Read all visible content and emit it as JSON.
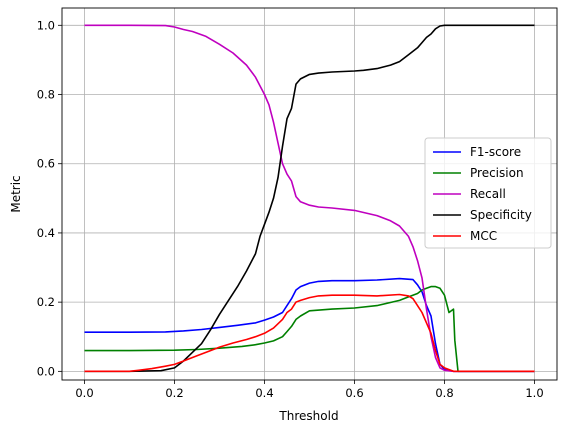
{
  "chart_data": {
    "type": "line",
    "title": "",
    "xlabel": "Threshold",
    "ylabel": "Metric",
    "xlim": [
      -0.05,
      1.05
    ],
    "ylim": [
      -0.025,
      1.05
    ],
    "grid": true,
    "legend": "center-right",
    "x_ticks": [
      "0.0",
      "0.2",
      "0.4",
      "0.6",
      "0.8",
      "1.0"
    ],
    "y_ticks": [
      "0.0",
      "0.2",
      "0.4",
      "0.6",
      "0.8",
      "1.0"
    ],
    "series": [
      {
        "name": "F1-score",
        "color": "#0000ff",
        "x": [
          0.0,
          0.1,
          0.18,
          0.22,
          0.26,
          0.3,
          0.34,
          0.38,
          0.4,
          0.42,
          0.44,
          0.45,
          0.46,
          0.47,
          0.48,
          0.5,
          0.52,
          0.55,
          0.6,
          0.65,
          0.7,
          0.73,
          0.74,
          0.75,
          0.76,
          0.77,
          0.78,
          0.79,
          0.8,
          0.82,
          0.85,
          0.9,
          1.0
        ],
        "y": [
          0.113,
          0.113,
          0.114,
          0.117,
          0.121,
          0.127,
          0.133,
          0.14,
          0.148,
          0.157,
          0.17,
          0.19,
          0.21,
          0.235,
          0.245,
          0.255,
          0.26,
          0.262,
          0.262,
          0.264,
          0.268,
          0.265,
          0.25,
          0.23,
          0.19,
          0.16,
          0.08,
          0.02,
          0.005,
          0.0,
          0.0,
          0.0,
          0.0
        ]
      },
      {
        "name": "Precision",
        "color": "#008000",
        "x": [
          0.0,
          0.1,
          0.2,
          0.25,
          0.3,
          0.35,
          0.38,
          0.4,
          0.42,
          0.44,
          0.45,
          0.46,
          0.47,
          0.48,
          0.5,
          0.55,
          0.6,
          0.65,
          0.7,
          0.72,
          0.74,
          0.75,
          0.76,
          0.77,
          0.78,
          0.79,
          0.8,
          0.81,
          0.82,
          0.823,
          0.83,
          0.9,
          1.0
        ],
        "y": [
          0.06,
          0.06,
          0.061,
          0.063,
          0.067,
          0.072,
          0.077,
          0.082,
          0.088,
          0.1,
          0.115,
          0.13,
          0.15,
          0.16,
          0.175,
          0.18,
          0.183,
          0.19,
          0.205,
          0.215,
          0.225,
          0.235,
          0.24,
          0.245,
          0.245,
          0.24,
          0.22,
          0.17,
          0.18,
          0.09,
          0.0,
          0.0,
          0.0
        ]
      },
      {
        "name": "Recall",
        "color": "#bf00bf",
        "x": [
          0.0,
          0.1,
          0.18,
          0.2,
          0.22,
          0.24,
          0.27,
          0.3,
          0.33,
          0.36,
          0.38,
          0.4,
          0.41,
          0.42,
          0.43,
          0.44,
          0.45,
          0.46,
          0.47,
          0.48,
          0.5,
          0.52,
          0.55,
          0.6,
          0.65,
          0.68,
          0.7,
          0.72,
          0.73,
          0.74,
          0.75,
          0.76,
          0.77,
          0.78,
          0.79,
          0.8,
          0.82,
          0.85,
          0.9,
          1.0
        ],
        "y": [
          1.0,
          1.0,
          0.999,
          0.995,
          0.988,
          0.982,
          0.968,
          0.945,
          0.92,
          0.885,
          0.85,
          0.8,
          0.77,
          0.72,
          0.66,
          0.6,
          0.57,
          0.55,
          0.505,
          0.49,
          0.48,
          0.475,
          0.472,
          0.465,
          0.45,
          0.435,
          0.42,
          0.39,
          0.36,
          0.32,
          0.27,
          0.18,
          0.1,
          0.04,
          0.01,
          0.003,
          0.0,
          0.0,
          0.0,
          0.0
        ]
      },
      {
        "name": "Specificity",
        "color": "#000000",
        "x": [
          0.0,
          0.1,
          0.17,
          0.2,
          0.22,
          0.24,
          0.26,
          0.28,
          0.3,
          0.32,
          0.34,
          0.36,
          0.38,
          0.39,
          0.4,
          0.41,
          0.42,
          0.43,
          0.44,
          0.45,
          0.46,
          0.47,
          0.48,
          0.5,
          0.52,
          0.55,
          0.6,
          0.62,
          0.65,
          0.68,
          0.7,
          0.72,
          0.74,
          0.75,
          0.76,
          0.77,
          0.78,
          0.79,
          0.8,
          0.85,
          0.9,
          1.0
        ],
        "y": [
          0.0,
          0.0,
          0.002,
          0.01,
          0.03,
          0.055,
          0.08,
          0.12,
          0.165,
          0.205,
          0.245,
          0.29,
          0.34,
          0.39,
          0.425,
          0.46,
          0.5,
          0.56,
          0.65,
          0.73,
          0.76,
          0.83,
          0.845,
          0.858,
          0.862,
          0.865,
          0.868,
          0.87,
          0.875,
          0.885,
          0.895,
          0.915,
          0.935,
          0.95,
          0.965,
          0.975,
          0.99,
          0.998,
          1.0,
          1.0,
          1.0,
          1.0
        ]
      },
      {
        "name": "MCC",
        "color": "#ff0000",
        "x": [
          0.0,
          0.1,
          0.12,
          0.15,
          0.18,
          0.2,
          0.22,
          0.25,
          0.28,
          0.3,
          0.33,
          0.36,
          0.38,
          0.4,
          0.42,
          0.44,
          0.45,
          0.46,
          0.47,
          0.48,
          0.5,
          0.52,
          0.55,
          0.6,
          0.65,
          0.7,
          0.72,
          0.73,
          0.74,
          0.75,
          0.76,
          0.77,
          0.78,
          0.79,
          0.8,
          0.82,
          0.85,
          0.9,
          1.0
        ],
        "y": [
          0.0,
          0.0,
          0.003,
          0.008,
          0.015,
          0.02,
          0.03,
          0.045,
          0.06,
          0.07,
          0.082,
          0.092,
          0.1,
          0.11,
          0.125,
          0.15,
          0.17,
          0.18,
          0.2,
          0.205,
          0.213,
          0.218,
          0.22,
          0.22,
          0.218,
          0.222,
          0.218,
          0.21,
          0.19,
          0.17,
          0.14,
          0.11,
          0.06,
          0.02,
          0.01,
          0.0,
          0.0,
          0.0,
          0.0
        ]
      }
    ]
  }
}
